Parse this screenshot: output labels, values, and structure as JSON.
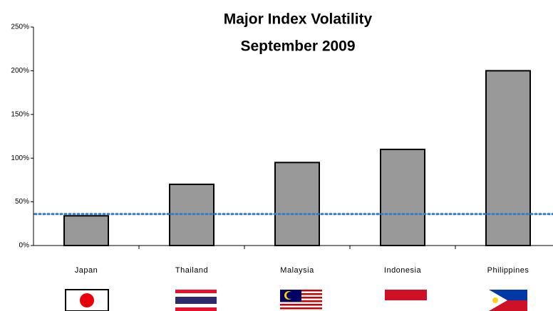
{
  "chart_data": {
    "type": "bar",
    "title": "Major Index Volatility",
    "subtitle": "September 2009",
    "categories": [
      "Japan",
      "Thailand",
      "Malaysia",
      "Indonesia",
      "Philippines"
    ],
    "values": [
      34,
      70,
      95,
      110,
      200
    ],
    "color": "#999999",
    "reference_line": 36,
    "reference_color": "#3a7cbf",
    "ylim": [
      0,
      250
    ],
    "yticks": [
      {
        "value": 0,
        "label": "0%"
      },
      {
        "value": 50,
        "label": "50%"
      },
      {
        "value": 100,
        "label": "100%"
      },
      {
        "value": 150,
        "label": "150%"
      },
      {
        "value": 200,
        "label": "200%"
      },
      {
        "value": 250,
        "label": "250%"
      }
    ]
  }
}
